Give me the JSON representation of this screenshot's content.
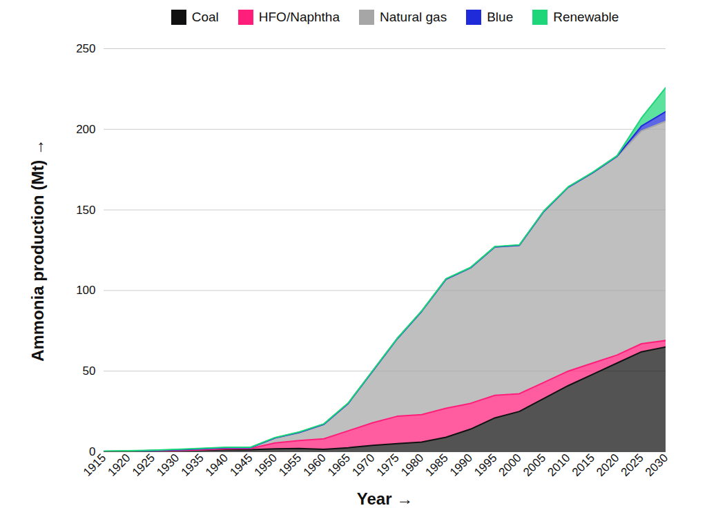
{
  "chart_data": {
    "type": "area",
    "stacked": true,
    "x_label": "Year",
    "y_label": "Ammonia production (Mt)",
    "x": [
      1915,
      1920,
      1925,
      1930,
      1935,
      1940,
      1945,
      1950,
      1955,
      1960,
      1965,
      1970,
      1975,
      1980,
      1985,
      1990,
      1995,
      2000,
      2005,
      2010,
      2015,
      2020,
      2025,
      2030
    ],
    "series": [
      {
        "name": "Coal",
        "color": "#111111",
        "values": [
          0.1,
          0.3,
          0.6,
          0.8,
          1.0,
          1.3,
          1.3,
          1.8,
          2,
          1.5,
          2.5,
          4,
          5,
          6,
          9,
          14,
          21,
          25,
          33,
          41,
          48,
          55,
          62,
          65
        ]
      },
      {
        "name": "HFO/Naphtha",
        "color": "#ff1f7a",
        "values": [
          0,
          0,
          0,
          0,
          0.2,
          0.5,
          0.7,
          3.7,
          5,
          6.5,
          10.5,
          14,
          17,
          17,
          18,
          16,
          14,
          11,
          10,
          9,
          7,
          5,
          5,
          4
        ]
      },
      {
        "name": "Natural gas",
        "color": "#a6a6a6",
        "values": [
          0.1,
          0.1,
          0.2,
          0.4,
          0.6,
          0.7,
          0.5,
          3,
          5,
          9,
          17,
          32,
          48,
          64,
          80,
          84,
          92,
          92,
          106,
          114,
          118,
          123,
          132,
          136
        ]
      },
      {
        "name": "Blue",
        "color": "#1f2bd9",
        "values": [
          0,
          0,
          0,
          0,
          0,
          0,
          0,
          0,
          0,
          0,
          0,
          0,
          0,
          0,
          0,
          0,
          0,
          0,
          0,
          0,
          0,
          0.3,
          3,
          6
        ]
      },
      {
        "name": "Renewable",
        "color": "#1ed67a",
        "values": [
          0.2,
          0.2,
          0.2,
          0.3,
          0.3,
          0.3,
          0.3,
          0.3,
          0.3,
          0.3,
          0.3,
          0.3,
          0.3,
          0.3,
          0.3,
          0.3,
          0.3,
          0.3,
          0.3,
          0.3,
          0.3,
          0.3,
          5,
          15
        ]
      }
    ],
    "xlim": [
      1915,
      2030
    ],
    "xticks": [
      1915,
      1920,
      1925,
      1930,
      1935,
      1940,
      1945,
      1950,
      1955,
      1960,
      1965,
      1970,
      1975,
      1980,
      1985,
      1990,
      1995,
      2000,
      2005,
      2010,
      2015,
      2020,
      2025,
      2030
    ],
    "ylim": [
      0,
      250
    ],
    "yticks": [
      0,
      50,
      100,
      150,
      200,
      250
    ],
    "grid": true,
    "legend": "top"
  }
}
